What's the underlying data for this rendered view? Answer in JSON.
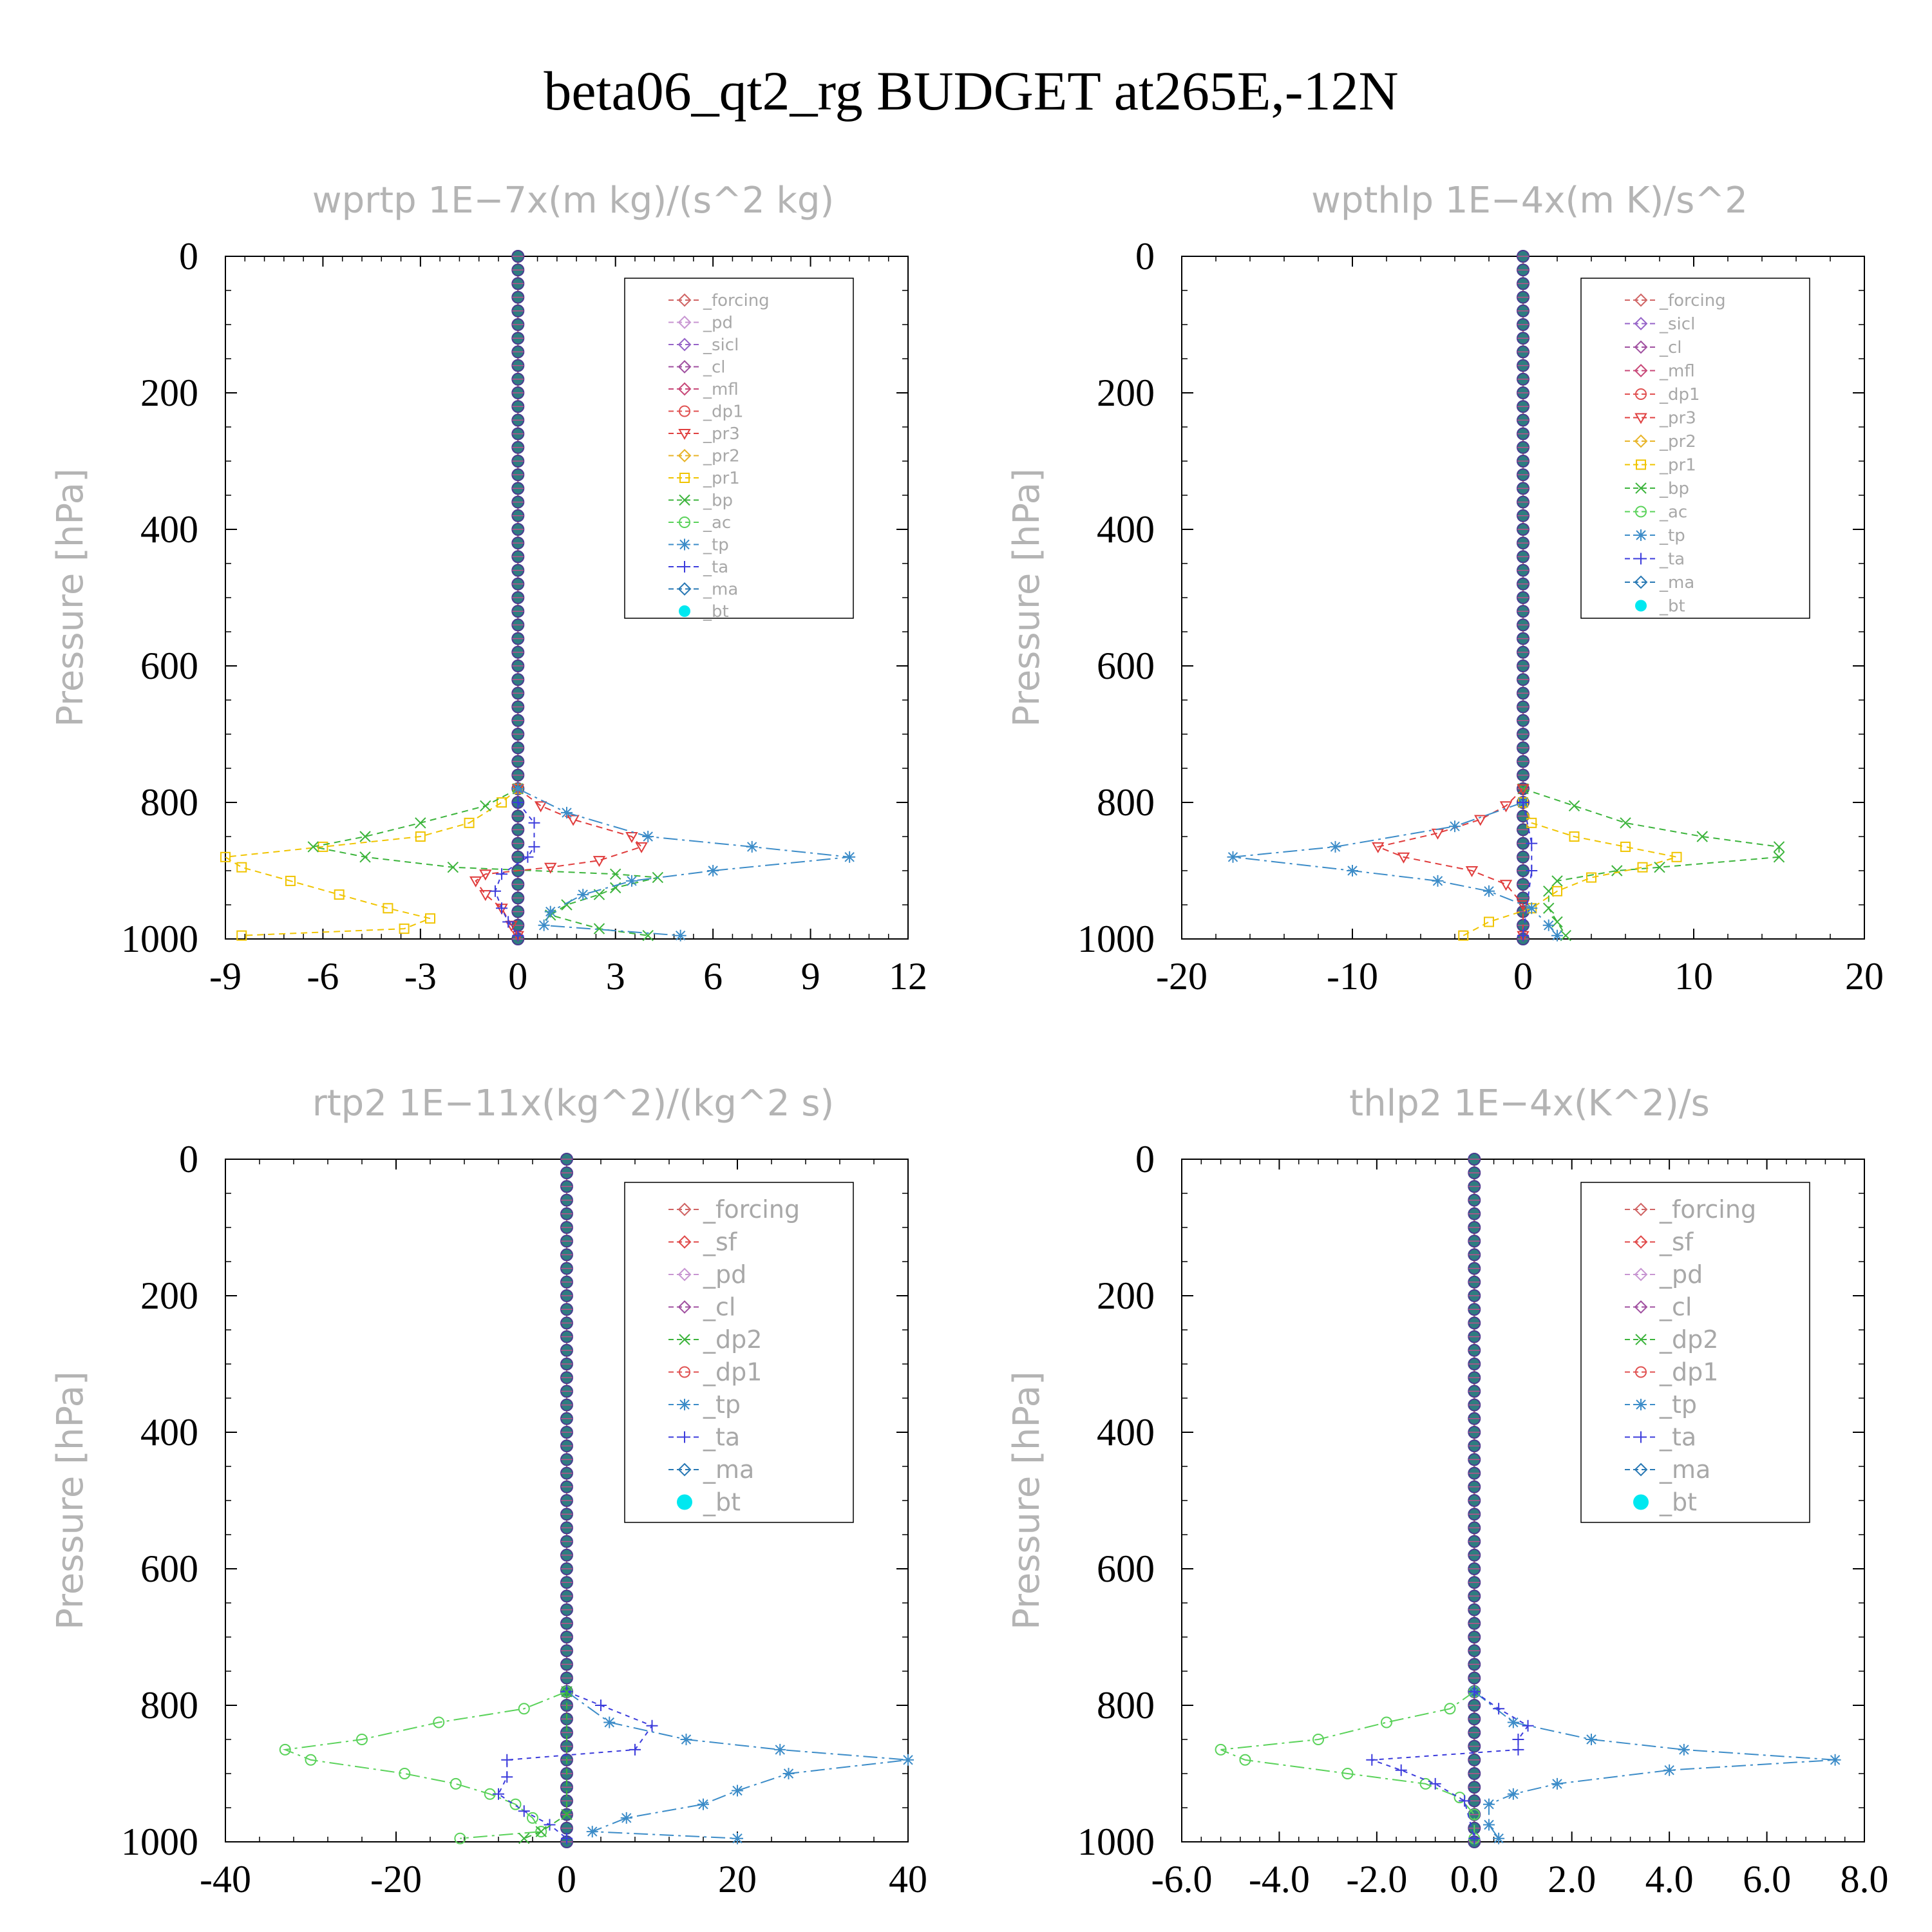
{
  "title": "beta06_qt2_rg  BUDGET at265E,-12N",
  "chart_data": [
    {
      "type": "line",
      "title": "wprtp   1E−7x(m kg)/(s^2 kg)",
      "ylabel": "Pressure [hPa]",
      "xlim": [
        -9,
        12
      ],
      "ylim": [
        1000,
        0
      ],
      "xticks": [
        "-9",
        "-6",
        "-3",
        "0",
        "3",
        "6",
        "9",
        "12"
      ],
      "yticks": [
        "0",
        "200",
        "400",
        "600",
        "800",
        "1000"
      ],
      "legend": [
        "_forcing",
        "_pd",
        "_sicl",
        "_cl",
        "_mfl",
        "_dp1",
        "_pr3",
        "_pr2",
        "_pr1",
        "_bp",
        "_ac",
        "_tp",
        "_ta",
        "_ma",
        "_bt"
      ],
      "series": [
        {
          "name": "_pr1",
          "color": "#f0c400",
          "points": [
            [
              0,
              780
            ],
            [
              -0.5,
              800
            ],
            [
              -1.5,
              830
            ],
            [
              -3,
              850
            ],
            [
              -6,
              865
            ],
            [
              -9,
              880
            ],
            [
              -8.5,
              895
            ],
            [
              -7,
              915
            ],
            [
              -5.5,
              935
            ],
            [
              -4,
              955
            ],
            [
              -2.7,
              970
            ],
            [
              -3.5,
              985
            ],
            [
              -8.5,
              995
            ]
          ]
        },
        {
          "name": "_bp",
          "color": "#3cb43c",
          "points": [
            [
              0,
              780
            ],
            [
              -1,
              805
            ],
            [
              -3,
              830
            ],
            [
              -4.7,
              850
            ],
            [
              -6.3,
              865
            ],
            [
              -4.7,
              880
            ],
            [
              -2,
              895
            ],
            [
              3,
              905
            ],
            [
              4.3,
              910
            ],
            [
              3,
              925
            ],
            [
              2.5,
              935
            ],
            [
              1.5,
              950
            ],
            [
              1,
              965
            ],
            [
              2.5,
              985
            ],
            [
              4,
              995
            ]
          ]
        },
        {
          "name": "_pr3",
          "color": "#e03c3c",
          "points": [
            [
              0,
              780
            ],
            [
              0.7,
              805
            ],
            [
              1.7,
              825
            ],
            [
              3.5,
              850
            ],
            [
              3.8,
              865
            ],
            [
              2.5,
              885
            ],
            [
              1,
              895
            ],
            [
              -1,
              905
            ],
            [
              -1.3,
              915
            ],
            [
              -1,
              935
            ],
            [
              -0.5,
              955
            ],
            [
              -0.2,
              980
            ],
            [
              0,
              995
            ]
          ]
        },
        {
          "name": "_tp",
          "color": "#3c8cc8",
          "points": [
            [
              0,
              780
            ],
            [
              1.5,
              815
            ],
            [
              4,
              850
            ],
            [
              7.2,
              865
            ],
            [
              10.2,
              880
            ],
            [
              6,
              900
            ],
            [
              3.5,
              915
            ],
            [
              2,
              935
            ],
            [
              1,
              960
            ],
            [
              0.8,
              980
            ],
            [
              5,
              995
            ]
          ]
        },
        {
          "name": "_ta",
          "color": "#3c3cdc",
          "points": [
            [
              0,
              800
            ],
            [
              0.5,
              830
            ],
            [
              0.5,
              865
            ],
            [
              0.3,
              880
            ],
            [
              -0.5,
              905
            ],
            [
              -0.7,
              930
            ],
            [
              -0.5,
              955
            ],
            [
              -0.3,
              975
            ],
            [
              0,
              995
            ]
          ]
        }
      ]
    },
    {
      "type": "line",
      "title": "wpthlp   1E−4x(m K)/s^2",
      "ylabel": "Pressure [hPa]",
      "xlim": [
        -20,
        20
      ],
      "ylim": [
        1000,
        0
      ],
      "xticks": [
        "-20",
        "-10",
        "0",
        "10",
        "20"
      ],
      "yticks": [
        "0",
        "200",
        "400",
        "600",
        "800",
        "1000"
      ],
      "legend": [
        "_forcing",
        "_sicl",
        "_cl",
        "_mfl",
        "_dp1",
        "_pr3",
        "_pr2",
        "_pr1",
        "_bp",
        "_ac",
        "_tp",
        "_ta",
        "_ma",
        "_bt"
      ],
      "series": [
        {
          "name": "_bp",
          "color": "#3cb43c",
          "points": [
            [
              0,
              780
            ],
            [
              3,
              805
            ],
            [
              6,
              830
            ],
            [
              10.5,
              850
            ],
            [
              15,
              865
            ],
            [
              15,
              880
            ],
            [
              8,
              895
            ],
            [
              5.5,
              900
            ],
            [
              2,
              915
            ],
            [
              1.5,
              930
            ],
            [
              1.5,
              955
            ],
            [
              2,
              975
            ],
            [
              2.5,
              995
            ]
          ]
        },
        {
          "name": "_pr1",
          "color": "#f0c400",
          "points": [
            [
              0,
              800
            ],
            [
              0.5,
              830
            ],
            [
              3,
              850
            ],
            [
              6,
              865
            ],
            [
              9,
              880
            ],
            [
              7,
              895
            ],
            [
              4,
              910
            ],
            [
              2,
              930
            ],
            [
              0.5,
              955
            ],
            [
              -2,
              975
            ],
            [
              -3.5,
              995
            ]
          ]
        },
        {
          "name": "_pr3",
          "color": "#e03c3c",
          "points": [
            [
              0,
              780
            ],
            [
              -1,
              805
            ],
            [
              -2.5,
              825
            ],
            [
              -5,
              845
            ],
            [
              -8.5,
              865
            ],
            [
              -7,
              880
            ],
            [
              -3,
              900
            ],
            [
              -1,
              920
            ],
            [
              0,
              950
            ],
            [
              0,
              995
            ]
          ]
        },
        {
          "name": "_tp",
          "color": "#3c8cc8",
          "points": [
            [
              0,
              800
            ],
            [
              -4,
              835
            ],
            [
              -11,
              865
            ],
            [
              -17,
              880
            ],
            [
              -10,
              900
            ],
            [
              -5,
              915
            ],
            [
              -2,
              930
            ],
            [
              0.5,
              955
            ],
            [
              1.5,
              980
            ],
            [
              2,
              995
            ]
          ]
        },
        {
          "name": "_ta",
          "color": "#3c3cdc",
          "points": [
            [
              0,
              800
            ],
            [
              0.5,
              860
            ],
            [
              0.5,
              900
            ],
            [
              0,
              995
            ]
          ]
        }
      ]
    },
    {
      "type": "line",
      "title": "rtp2   1E−11x(kg^2)/(kg^2 s)",
      "ylabel": "Pressure [hPa]",
      "xlim": [
        -40,
        40
      ],
      "ylim": [
        1000,
        0
      ],
      "xticks": [
        "-40",
        "-20",
        "0",
        "20",
        "40"
      ],
      "yticks": [
        "0",
        "200",
        "400",
        "600",
        "800",
        "1000"
      ],
      "legend": [
        "_forcing",
        "_sf",
        "_pd",
        "_cl",
        "_dp2",
        "_dp1",
        "_tp",
        "_ta",
        "_ma",
        "_bt"
      ],
      "series": [
        {
          "name": "_dp1",
          "color": "#5ad25a",
          "points": [
            [
              0,
              780
            ],
            [
              -5,
              805
            ],
            [
              -15,
              825
            ],
            [
              -24,
              850
            ],
            [
              -33,
              865
            ],
            [
              -30,
              880
            ],
            [
              -19,
              900
            ],
            [
              -13,
              915
            ],
            [
              -9,
              930
            ],
            [
              -6,
              945
            ],
            [
              -4,
              965
            ],
            [
              -3,
              985
            ],
            [
              -12.5,
              995
            ]
          ]
        },
        {
          "name": "_tp",
          "color": "#3c8cc8",
          "points": [
            [
              0,
              780
            ],
            [
              5,
              825
            ],
            [
              14,
              850
            ],
            [
              25,
              865
            ],
            [
              40,
              880
            ],
            [
              26,
              900
            ],
            [
              20,
              925
            ],
            [
              16,
              945
            ],
            [
              7,
              965
            ],
            [
              3,
              985
            ],
            [
              20,
              995
            ]
          ]
        },
        {
          "name": "_ta",
          "color": "#3c3cdc",
          "points": [
            [
              0,
              780
            ],
            [
              4,
              800
            ],
            [
              10,
              830
            ],
            [
              8,
              865
            ],
            [
              -7,
              880
            ],
            [
              -7,
              905
            ],
            [
              -8,
              930
            ],
            [
              -5,
              955
            ],
            [
              -2,
              975
            ],
            [
              0,
              995
            ]
          ]
        },
        {
          "name": "_dp2",
          "color": "#3cb43c",
          "points": [
            [
              0,
              780
            ],
            [
              0,
              960
            ],
            [
              -3,
              985
            ],
            [
              -5,
              995
            ]
          ]
        }
      ]
    },
    {
      "type": "line",
      "title": "thlp2   1E−4x(K^2)/s",
      "ylabel": "Pressure [hPa]",
      "xlim": [
        -6,
        8
      ],
      "ylim": [
        1000,
        0
      ],
      "xticks": [
        "-6.0",
        "-4.0",
        "-2.0",
        "0.0",
        "2.0",
        "4.0",
        "6.0",
        "8.0"
      ],
      "yticks": [
        "0",
        "200",
        "400",
        "600",
        "800",
        "1000"
      ],
      "legend": [
        "_forcing",
        "_sf",
        "_pd",
        "_cl",
        "_dp2",
        "_dp1",
        "_tp",
        "_ta",
        "_ma",
        "_bt"
      ],
      "series": [
        {
          "name": "_dp1",
          "color": "#5ad25a",
          "points": [
            [
              0,
              780
            ],
            [
              -0.5,
              805
            ],
            [
              -1.8,
              825
            ],
            [
              -3.2,
              850
            ],
            [
              -5.2,
              865
            ],
            [
              -4.7,
              880
            ],
            [
              -2.6,
              900
            ],
            [
              -1,
              915
            ],
            [
              -0.3,
              935
            ],
            [
              0,
              960
            ],
            [
              0,
              995
            ]
          ]
        },
        {
          "name": "_tp",
          "color": "#3c8cc8",
          "points": [
            [
              0,
              780
            ],
            [
              0.8,
              825
            ],
            [
              2.4,
              850
            ],
            [
              4.3,
              865
            ],
            [
              7.4,
              880
            ],
            [
              4,
              895
            ],
            [
              1.7,
              915
            ],
            [
              0.8,
              930
            ],
            [
              0.3,
              945
            ],
            [
              0.3,
              975
            ],
            [
              0.5,
              995
            ]
          ]
        },
        {
          "name": "_ta",
          "color": "#3c3cdc",
          "points": [
            [
              0,
              780
            ],
            [
              0.5,
              805
            ],
            [
              1.1,
              830
            ],
            [
              0.9,
              850
            ],
            [
              0.9,
              865
            ],
            [
              -2.1,
              880
            ],
            [
              -1.5,
              895
            ],
            [
              -0.8,
              915
            ],
            [
              -0.2,
              940
            ],
            [
              0,
              995
            ]
          ]
        }
      ]
    }
  ]
}
